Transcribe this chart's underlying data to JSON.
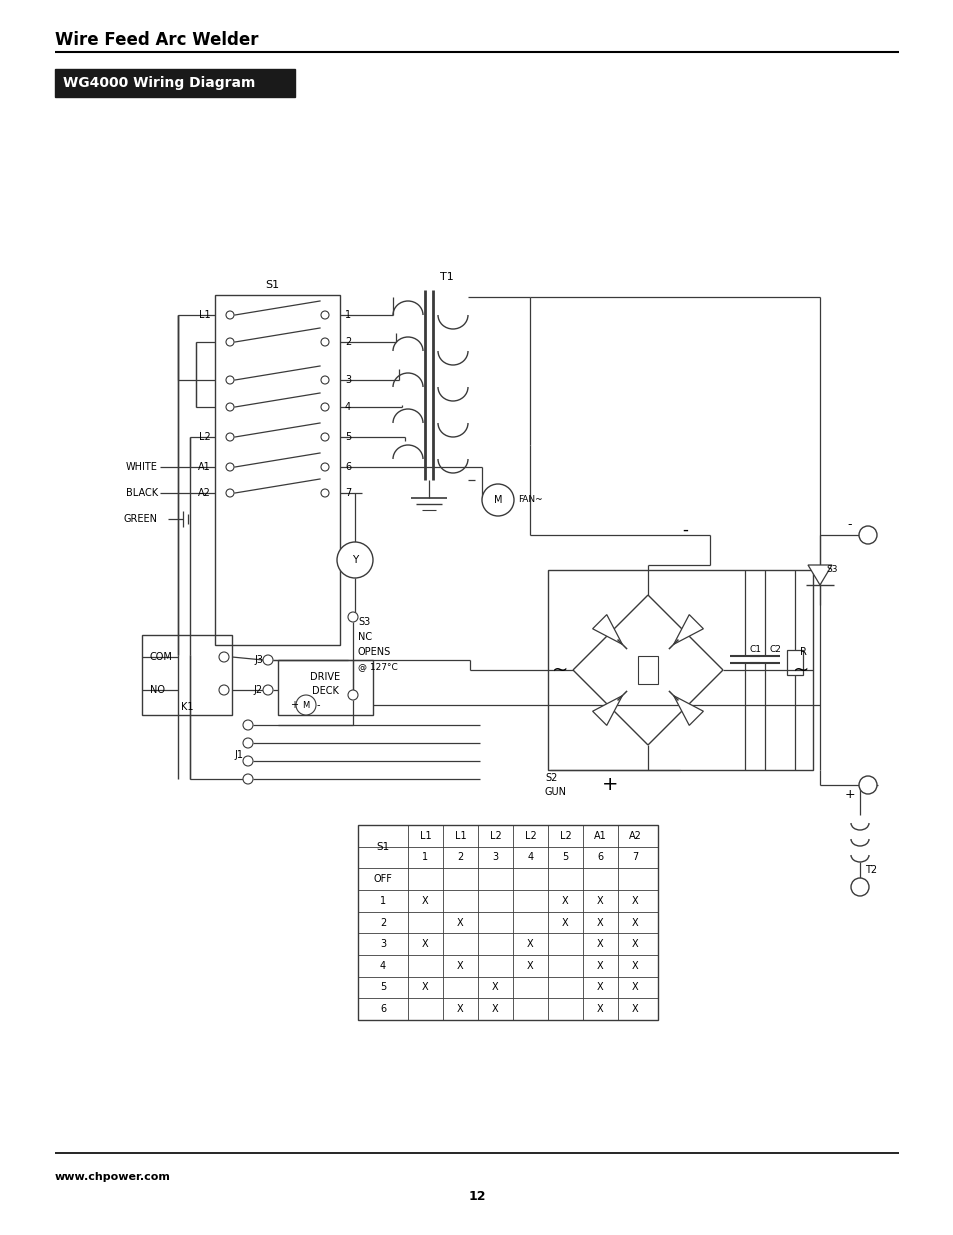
{
  "page_title": "Wire Feed Arc Welder",
  "section_title": "WG4000 Wiring Diagram",
  "footer_url": "www.chpower.com",
  "page_number": "12",
  "bg_color": "#ffffff",
  "line_color": "#000000",
  "title_bg": "#1a1a1a",
  "title_fg": "#ffffff",
  "diagram_line_color": "#3a3a3a",
  "table_data": [
    [
      "S1",
      "L1",
      "L1",
      "L2",
      "L2",
      "L2",
      "A1",
      "A2"
    ],
    [
      "",
      "1",
      "2",
      "3",
      "4",
      "5",
      "6",
      "7"
    ],
    [
      "OFF",
      "",
      "",
      "",
      "",
      "",
      "",
      ""
    ],
    [
      "1",
      "X",
      "",
      "",
      "",
      "X",
      "X",
      "X"
    ],
    [
      "2",
      "",
      "X",
      "",
      "",
      "X",
      "X",
      "X"
    ],
    [
      "3",
      "X",
      "",
      "",
      "X",
      "",
      "X",
      "X"
    ],
    [
      "4",
      "",
      "X",
      "",
      "X",
      "",
      "X",
      "X"
    ],
    [
      "5",
      "X",
      "",
      "X",
      "",
      "",
      "X",
      "X"
    ],
    [
      "6",
      "",
      "X",
      "X",
      "",
      "",
      "X",
      "X"
    ]
  ]
}
